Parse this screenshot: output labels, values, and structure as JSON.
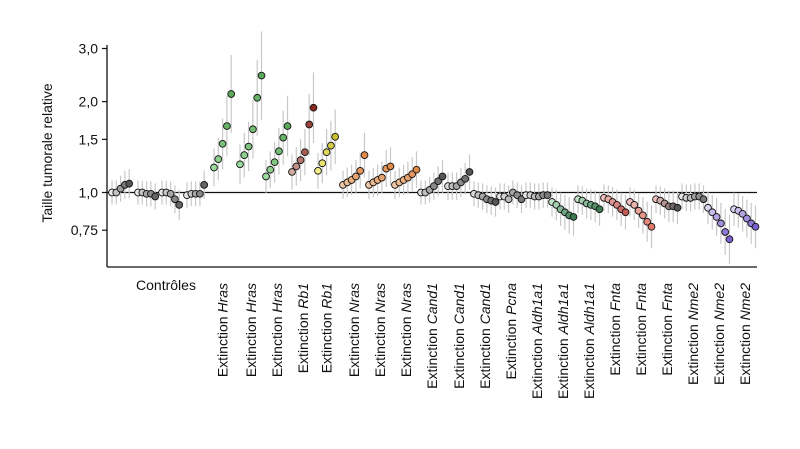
{
  "chart_data": {
    "type": "scatter",
    "ylabel": "Taille tumorale relative",
    "y_scale": "log",
    "ylim": [
      0.6,
      3.2
    ],
    "yticks": [
      {
        "value": 3.0,
        "label": "3,0"
      },
      {
        "value": 2.0,
        "label": "2,0"
      },
      {
        "value": 1.5,
        "label": "1,5"
      },
      {
        "value": 1.0,
        "label": "1,0"
      },
      {
        "value": 0.75,
        "label": "0,75"
      }
    ],
    "reference_line": 1.0,
    "grid": false,
    "groups": [
      {
        "prefix": "",
        "gene": "Contrôles",
        "color": "#e8e8e8",
        "dark": "#555555",
        "values": [
          1.0,
          1.0,
          1.03,
          1.06,
          1.07
        ]
      },
      {
        "prefix": "",
        "gene": "",
        "color": "#e8e8e8",
        "dark": "#666666",
        "values": [
          1.0,
          1.0,
          0.99,
          0.99,
          0.97
        ]
      },
      {
        "prefix": "",
        "gene": "",
        "color": "#e8e8e8",
        "dark": "#666666",
        "values": [
          1.0,
          1.0,
          0.99,
          0.95,
          0.91
        ]
      },
      {
        "prefix": "",
        "gene": "",
        "color": "#e8e8e8",
        "dark": "#666666",
        "values": [
          0.98,
          0.99,
          0.99,
          0.99,
          1.06
        ]
      },
      {
        "prefix": "Extinction ",
        "gene": "Hras",
        "color": "#9bd99b",
        "dark": "#5aa85a",
        "values": [
          1.21,
          1.29,
          1.45,
          1.66,
          2.12
        ]
      },
      {
        "prefix": "Extinction ",
        "gene": "Hras",
        "color": "#9bd99b",
        "dark": "#5aa85a",
        "values": [
          1.24,
          1.33,
          1.42,
          1.62,
          2.06,
          2.44
        ]
      },
      {
        "prefix": "Extinction ",
        "gene": "Hras",
        "color": "#9bd99b",
        "dark": "#5aa85a",
        "values": [
          1.13,
          1.19,
          1.26,
          1.37,
          1.52,
          1.66
        ]
      },
      {
        "prefix": "Extinction ",
        "gene": "Rb1",
        "color": "#d2a99f",
        "dark": "#8a2a22",
        "values": [
          1.17,
          1.22,
          1.28,
          1.36,
          1.68,
          1.91
        ]
      },
      {
        "prefix": "Extinction ",
        "gene": "Rb1",
        "color": "#f3ee88",
        "dark": "#c9c030",
        "values": [
          1.18,
          1.25,
          1.36,
          1.43,
          1.53
        ]
      },
      {
        "prefix": "Extinction ",
        "gene": "Nras",
        "color": "#f2c8a4",
        "dark": "#e08a4a",
        "values": [
          1.06,
          1.08,
          1.1,
          1.13,
          1.18,
          1.33
        ]
      },
      {
        "prefix": "Extinction ",
        "gene": "Nras",
        "color": "#f2c8a4",
        "dark": "#e08a4a",
        "values": [
          1.06,
          1.08,
          1.1,
          1.12,
          1.2,
          1.22
        ]
      },
      {
        "prefix": "Extinction ",
        "gene": "Nras",
        "color": "#f2c8a4",
        "dark": "#e08a4a",
        "values": [
          1.06,
          1.08,
          1.1,
          1.12,
          1.15,
          1.19
        ]
      },
      {
        "prefix": "Extinction ",
        "gene": "Cand1",
        "color": "#dcdcdc",
        "dark": "#555555",
        "values": [
          1.0,
          1.0,
          1.02,
          1.05,
          1.09,
          1.13
        ]
      },
      {
        "prefix": "Extinction ",
        "gene": "Cand1",
        "color": "#dcdcdc",
        "dark": "#555555",
        "values": [
          1.05,
          1.05,
          1.05,
          1.08,
          1.11,
          1.17
        ]
      },
      {
        "prefix": "Extinction ",
        "gene": "Cand1",
        "color": "#dcdcdc",
        "dark": "#555555",
        "values": [
          0.99,
          0.98,
          0.97,
          0.95,
          0.94,
          0.93
        ]
      },
      {
        "prefix": "Extinction ",
        "gene": "Pcna",
        "color": "#e8e8e8",
        "dark": "#777777",
        "values": [
          0.97,
          0.97,
          0.95,
          1.0,
          0.98,
          0.95
        ]
      },
      {
        "prefix": "Extinction ",
        "gene": "Aldh1a1",
        "color": "#e8e8e8",
        "dark": "#777777",
        "values": [
          0.98,
          0.98,
          0.97,
          0.97,
          0.98,
          0.98
        ]
      },
      {
        "prefix": "Extinction ",
        "gene": "Aldh1a1",
        "color": "#bfe3c7",
        "dark": "#3a7a50",
        "values": [
          0.93,
          0.91,
          0.88,
          0.86,
          0.84,
          0.83
        ]
      },
      {
        "prefix": "Extinction ",
        "gene": "Aldh1a1",
        "color": "#bfe3c7",
        "dark": "#3a7a50",
        "values": [
          0.95,
          0.94,
          0.92,
          0.91,
          0.9,
          0.88
        ]
      },
      {
        "prefix": "Extinction ",
        "gene": "Fnta",
        "color": "#f2c0bc",
        "dark": "#c25a55",
        "values": [
          0.96,
          0.95,
          0.93,
          0.91,
          0.88,
          0.86
        ]
      },
      {
        "prefix": "Extinction ",
        "gene": "Fnta",
        "color": "#f2c0bc",
        "dark": "#e07a6a",
        "values": [
          0.93,
          0.91,
          0.87,
          0.84,
          0.8,
          0.77
        ]
      },
      {
        "prefix": "Extinction ",
        "gene": "Fnta",
        "color": "#f2c0bc",
        "dark": "#555555",
        "values": [
          0.95,
          0.94,
          0.92,
          0.9,
          0.9,
          0.89
        ]
      },
      {
        "prefix": "Extinction ",
        "gene": "Nme2",
        "color": "#e8e8e8",
        "dark": "#777777",
        "values": [
          0.97,
          0.96,
          0.96,
          0.97,
          0.97,
          0.95
        ]
      },
      {
        "prefix": "Extinction ",
        "gene": "Nme2",
        "color": "#ddd4f2",
        "dark": "#7a5fcf",
        "values": [
          0.89,
          0.86,
          0.83,
          0.79,
          0.74,
          0.7
        ]
      },
      {
        "prefix": "Extinction ",
        "gene": "Nme2",
        "color": "#ddd4f2",
        "dark": "#7a5fcf",
        "values": [
          0.88,
          0.87,
          0.85,
          0.82,
          0.79,
          0.77
        ]
      }
    ]
  }
}
